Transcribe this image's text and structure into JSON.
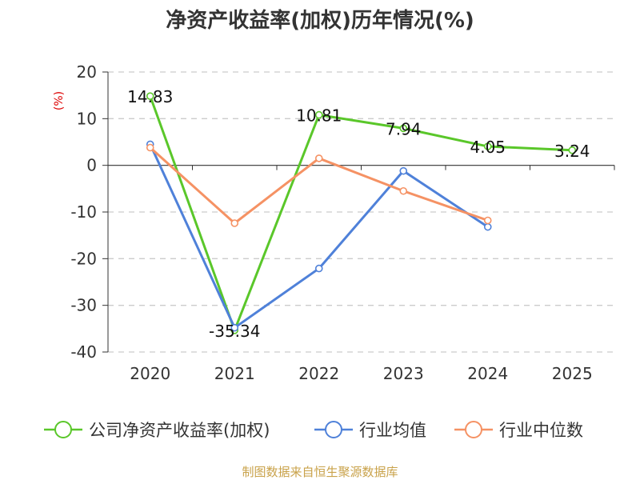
{
  "chart_data": {
    "type": "line",
    "title": "净资产收益率(加权)历年情况(%)",
    "ylabel": "(%)",
    "xlabel": "",
    "categories": [
      "2020",
      "2021",
      "2022",
      "2023",
      "2024",
      "2025"
    ],
    "ylim": [
      -40,
      20
    ],
    "yticks": [
      20,
      10,
      0,
      -10,
      -20,
      -30,
      -40
    ],
    "grid": true,
    "legend_position": "bottom",
    "series": [
      {
        "name": "公司净资产收益率(加权)",
        "color": "#5ac72a",
        "values": [
          14.83,
          -35.34,
          10.81,
          7.94,
          4.05,
          3.24
        ],
        "labels": [
          "14.83",
          "-35.34",
          "10.81",
          "7.94",
          "4.05",
          "3.24"
        ]
      },
      {
        "name": "行业均值",
        "color": "#4f81d9",
        "values": [
          4.5,
          -34.8,
          -22.1,
          -1.2,
          -13.2,
          null
        ]
      },
      {
        "name": "行业中位数",
        "color": "#f59264",
        "values": [
          3.8,
          -12.4,
          1.5,
          -5.5,
          -11.8,
          null
        ]
      }
    ],
    "source": "制图数据来自恒生聚源数据库"
  }
}
